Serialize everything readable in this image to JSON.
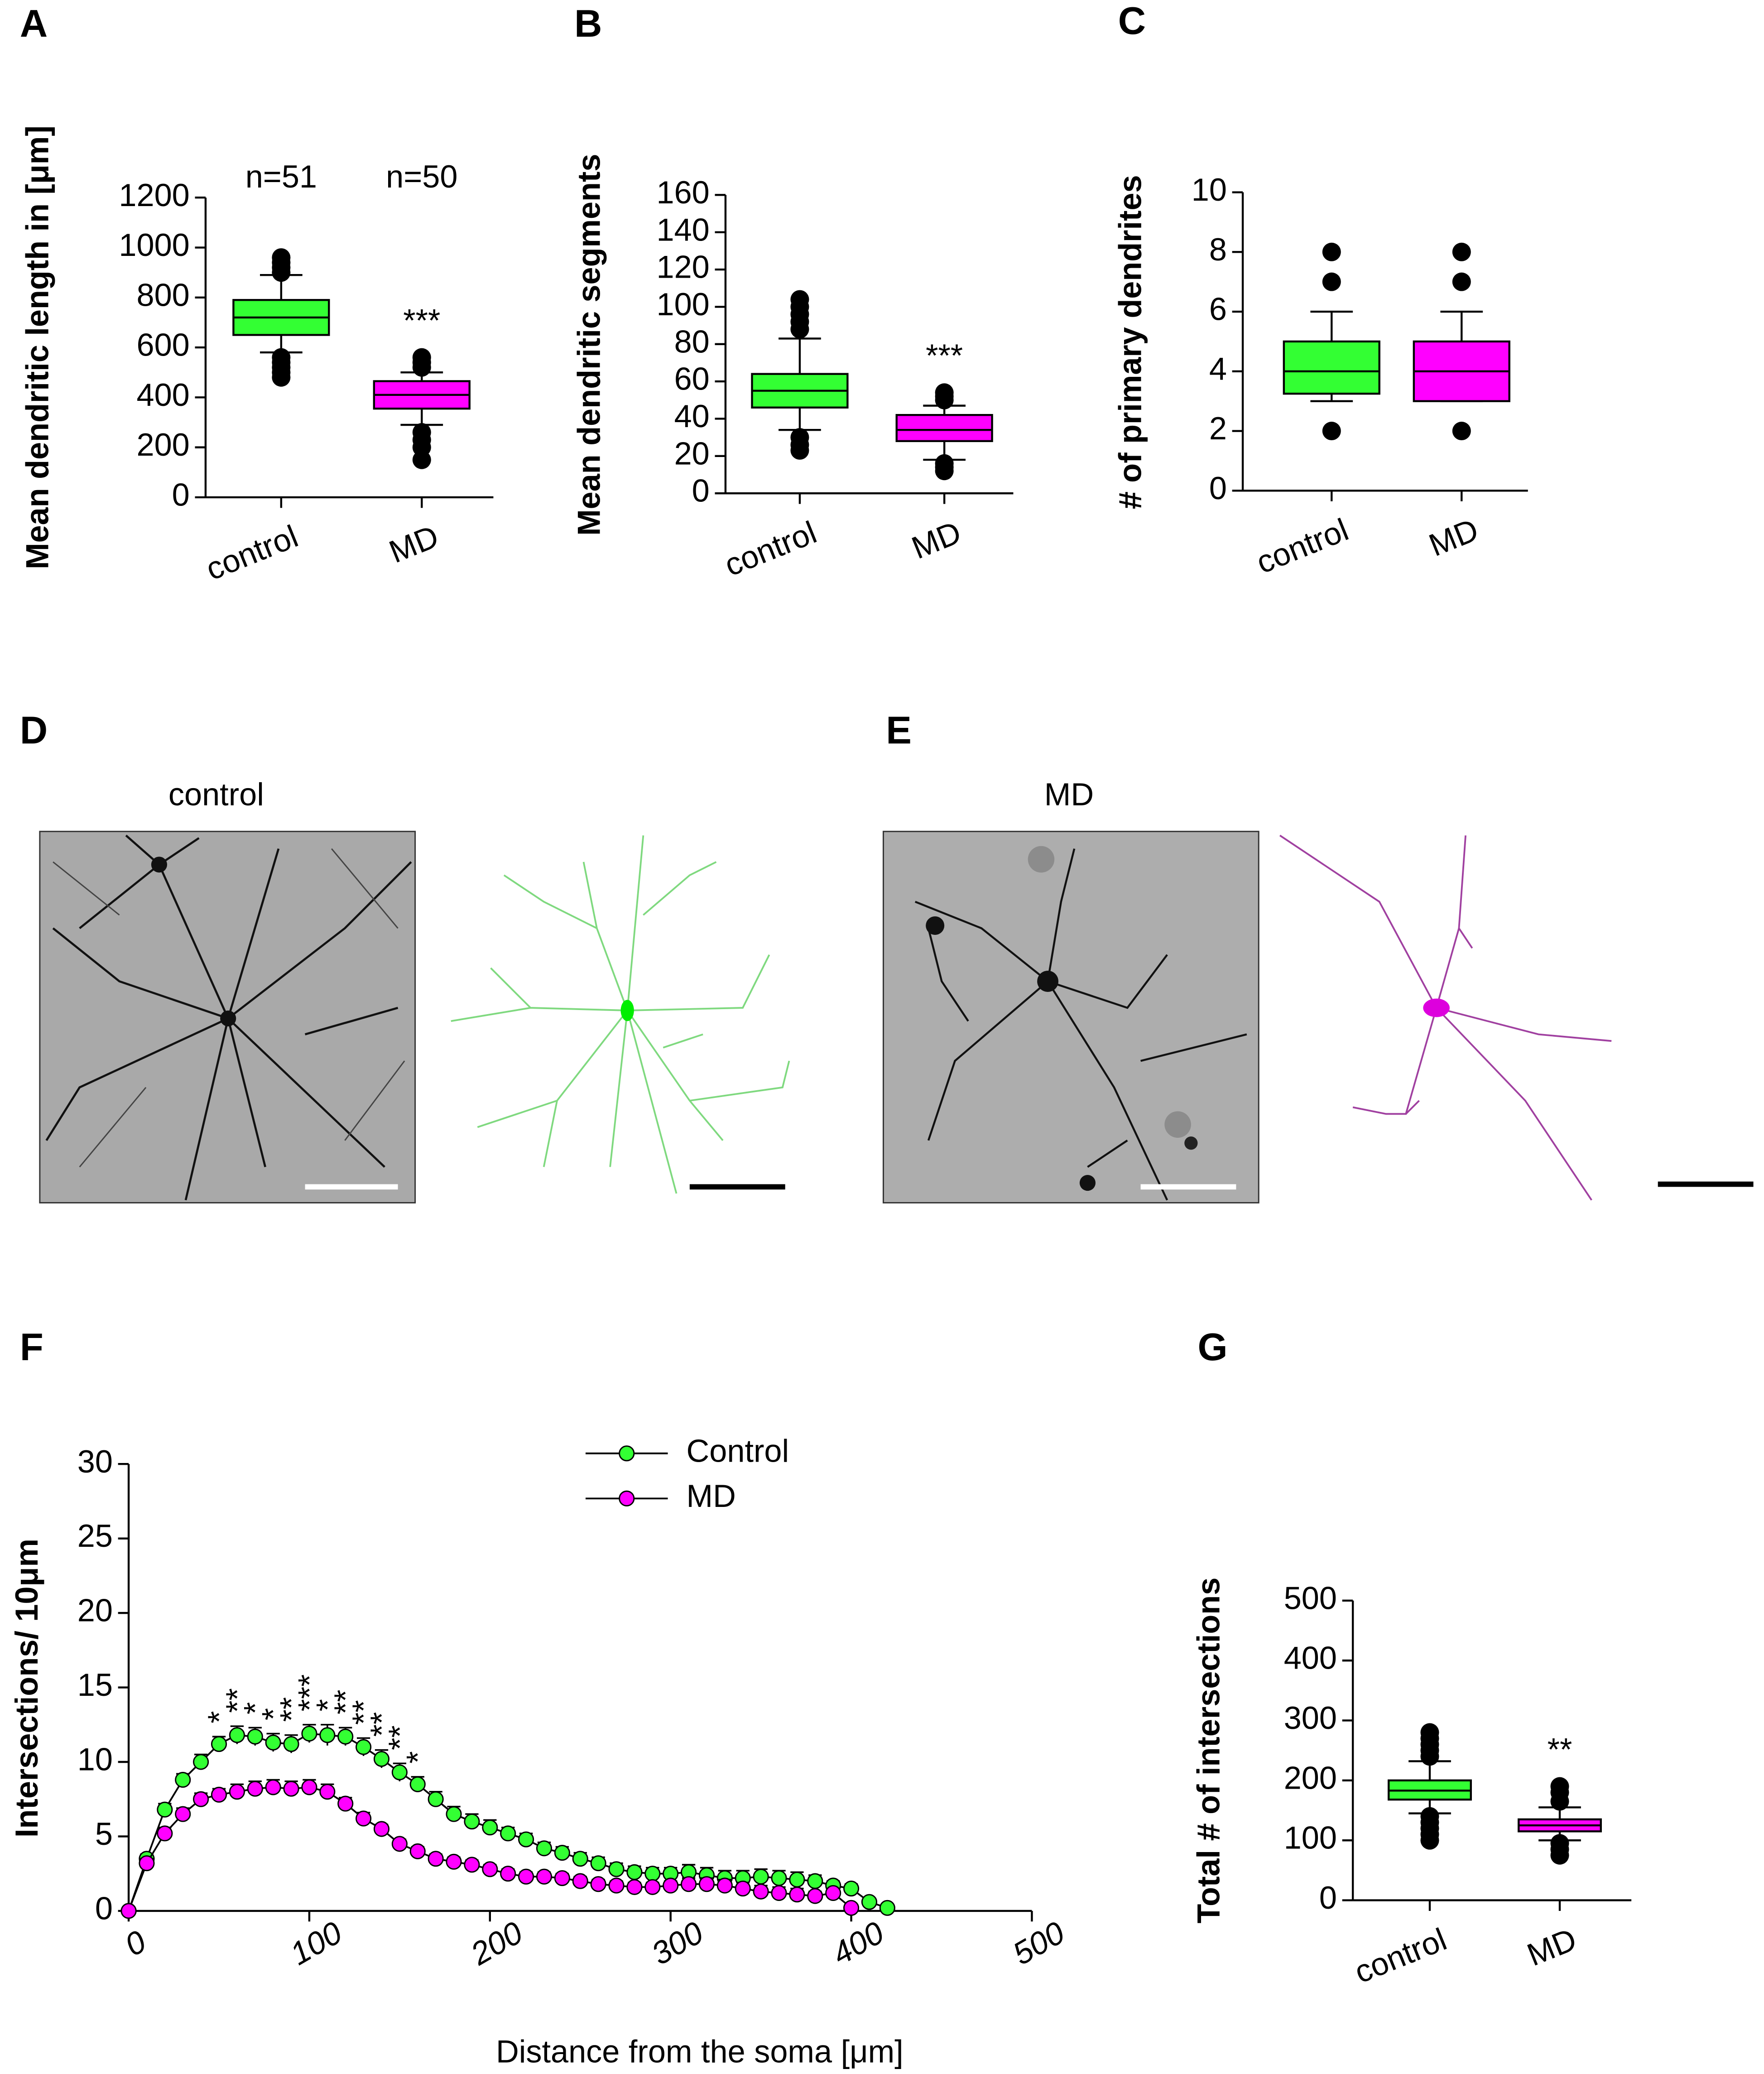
{
  "chart_data": [
    {
      "type": "box",
      "panel": "A",
      "ylabel": "Mean dendritic length in [μm]",
      "categories": [
        "control",
        "MD"
      ],
      "ylim": [
        0,
        1200
      ],
      "yticks": [
        0,
        200,
        400,
        600,
        800,
        1000,
        1200
      ],
      "sample_sizes": [
        "n=51",
        "n=50"
      ],
      "significance": {
        "category": 1,
        "text": "***"
      },
      "boxes": [
        {
          "color": "#33ff33",
          "whisker_low": 580,
          "q1": 650,
          "median": 720,
          "q3": 790,
          "whisker_high": 890,
          "outliers": [
            480,
            500,
            520,
            540,
            560,
            900,
            920,
            940,
            960
          ]
        },
        {
          "color": "#ff00ff",
          "whisker_low": 290,
          "q1": 355,
          "median": 410,
          "q3": 465,
          "whisker_high": 500,
          "outliers": [
            150,
            200,
            230,
            260,
            520,
            540,
            560
          ]
        }
      ]
    },
    {
      "type": "box",
      "panel": "B",
      "ylabel": "Mean dendritic segments",
      "categories": [
        "control",
        "MD"
      ],
      "ylim": [
        0,
        160
      ],
      "yticks": [
        0,
        20,
        40,
        60,
        80,
        100,
        120,
        140,
        160
      ],
      "significance": {
        "category": 1,
        "text": "***"
      },
      "boxes": [
        {
          "color": "#33ff33",
          "whisker_low": 34,
          "q1": 46,
          "median": 55,
          "q3": 64,
          "whisker_high": 83,
          "outliers": [
            23,
            26,
            30,
            88,
            92,
            96,
            100,
            104
          ]
        },
        {
          "color": "#ff00ff",
          "whisker_low": 18,
          "q1": 28,
          "median": 34,
          "q3": 42,
          "whisker_high": 47,
          "outliers": [
            12,
            14,
            16,
            50,
            52,
            54
          ]
        }
      ]
    },
    {
      "type": "box",
      "panel": "C",
      "ylabel": "# of primary dendrites",
      "categories": [
        "control",
        "MD"
      ],
      "ylim": [
        0,
        10
      ],
      "yticks": [
        0,
        2,
        4,
        6,
        8,
        10
      ],
      "boxes": [
        {
          "color": "#33ff33",
          "whisker_low": 3,
          "q1": 3.25,
          "median": 4,
          "q3": 5,
          "whisker_high": 6,
          "outliers": [
            2,
            7,
            8
          ]
        },
        {
          "color": "#ff00ff",
          "whisker_low": 3,
          "q1": 3,
          "median": 4,
          "q3": 5,
          "whisker_high": 6,
          "outliers": [
            2,
            7,
            8
          ]
        }
      ]
    },
    {
      "type": "line",
      "panel": "F",
      "xlabel": "Distance from the soma [μm]",
      "ylabel": "Intersections/ 10μm",
      "xlim": [
        0,
        500
      ],
      "xticks": [
        0,
        100,
        200,
        300,
        400,
        500
      ],
      "ylim": [
        0,
        30
      ],
      "yticks": [
        0,
        5,
        10,
        15,
        20,
        25,
        30
      ],
      "legend": "top",
      "series": [
        {
          "name": "Control",
          "color": "#33ff33",
          "x": [
            0,
            10,
            20,
            30,
            40,
            50,
            60,
            70,
            80,
            90,
            100,
            110,
            120,
            130,
            140,
            150,
            160,
            170,
            180,
            190,
            200,
            210,
            220,
            230,
            240,
            250,
            260,
            270,
            280,
            290,
            300,
            310,
            320,
            330,
            340,
            350,
            360,
            370,
            380,
            390,
            400,
            410,
            420
          ],
          "values": [
            0,
            3.5,
            6.8,
            8.8,
            10,
            11.2,
            11.8,
            11.7,
            11.3,
            11.2,
            11.9,
            11.8,
            11.7,
            11,
            10.2,
            9.3,
            8.5,
            7.5,
            6.5,
            6,
            5.6,
            5.2,
            4.8,
            4.2,
            3.9,
            3.5,
            3.2,
            2.8,
            2.6,
            2.5,
            2.5,
            2.6,
            2.4,
            2.2,
            2.2,
            2.3,
            2.2,
            2.1,
            2.0,
            1.7,
            1.5,
            0.6,
            0.2
          ],
          "errors": [
            0,
            0.3,
            0.4,
            0.4,
            0.5,
            0.5,
            0.6,
            0.6,
            0.6,
            0.6,
            0.6,
            0.7,
            0.6,
            0.6,
            0.6,
            0.6,
            0.5,
            0.5,
            0.5,
            0.5,
            0.5,
            0.4,
            0.4,
            0.4,
            0.4,
            0.4,
            0.4,
            0.4,
            0.4,
            0.4,
            0.4,
            0.5,
            0.5,
            0.5,
            0.5,
            0.5,
            0.5,
            0.5,
            0.4,
            0.3,
            0.3,
            0.2,
            0.2
          ]
        },
        {
          "name": "MD",
          "color": "#ff00ff",
          "x": [
            0,
            10,
            20,
            30,
            40,
            50,
            60,
            70,
            80,
            90,
            100,
            110,
            120,
            130,
            140,
            150,
            160,
            170,
            180,
            190,
            200,
            210,
            220,
            230,
            240,
            250,
            260,
            270,
            280,
            290,
            300,
            310,
            320,
            330,
            340,
            350,
            360,
            370,
            380,
            390,
            400
          ],
          "values": [
            0,
            3.2,
            5.2,
            6.5,
            7.5,
            7.8,
            8,
            8.2,
            8.3,
            8.2,
            8.3,
            8,
            7.2,
            6.2,
            5.5,
            4.5,
            4,
            3.5,
            3.3,
            3.1,
            2.8,
            2.5,
            2.3,
            2.3,
            2.2,
            2,
            1.8,
            1.7,
            1.6,
            1.6,
            1.7,
            1.8,
            1.8,
            1.7,
            1.5,
            1.3,
            1.2,
            1.1,
            1.0,
            1.2,
            0.2
          ],
          "errors": [
            0,
            0.3,
            0.4,
            0.4,
            0.4,
            0.4,
            0.5,
            0.5,
            0.5,
            0.5,
            0.5,
            0.5,
            0.4,
            0.4,
            0.3,
            0.3,
            0.3,
            0.3,
            0.3,
            0.3,
            0.3,
            0.3,
            0.3,
            0.3,
            0.3,
            0.3,
            0.3,
            0.3,
            0.3,
            0.3,
            0.3,
            0.4,
            0.4,
            0.4,
            0.4,
            0.4,
            0.4,
            0.4,
            0.3,
            0.3,
            0.1
          ]
        }
      ],
      "annotations": [
        {
          "x": 50,
          "text": "*"
        },
        {
          "x": 60,
          "text": "**"
        },
        {
          "x": 70,
          "text": "*"
        },
        {
          "x": 80,
          "text": "*"
        },
        {
          "x": 90,
          "text": "**"
        },
        {
          "x": 100,
          "text": "***"
        },
        {
          "x": 110,
          "text": "*"
        },
        {
          "x": 120,
          "text": "**"
        },
        {
          "x": 130,
          "text": "**"
        },
        {
          "x": 140,
          "text": "**"
        },
        {
          "x": 150,
          "text": "**"
        },
        {
          "x": 160,
          "text": "*"
        }
      ]
    },
    {
      "type": "box",
      "panel": "G",
      "ylabel": "Total # of intersections",
      "categories": [
        "control",
        "MD"
      ],
      "ylim": [
        0,
        500
      ],
      "yticks": [
        0,
        100,
        200,
        300,
        400,
        500
      ],
      "significance": {
        "category": 1,
        "text": "**"
      },
      "boxes": [
        {
          "color": "#33ff33",
          "whisker_low": 145,
          "q1": 168,
          "median": 183,
          "q3": 200,
          "whisker_high": 232,
          "outliers": [
            100,
            110,
            120,
            130,
            140,
            240,
            250,
            260,
            270,
            280
          ]
        },
        {
          "color": "#ff00ff",
          "whisker_low": 100,
          "q1": 115,
          "median": 125,
          "q3": 135,
          "whisker_high": 155,
          "outliers": [
            75,
            85,
            95,
            165,
            180,
            190
          ]
        }
      ]
    }
  ],
  "images": [
    {
      "panel": "D",
      "label": "control"
    },
    {
      "panel": "E",
      "label": "MD"
    }
  ]
}
